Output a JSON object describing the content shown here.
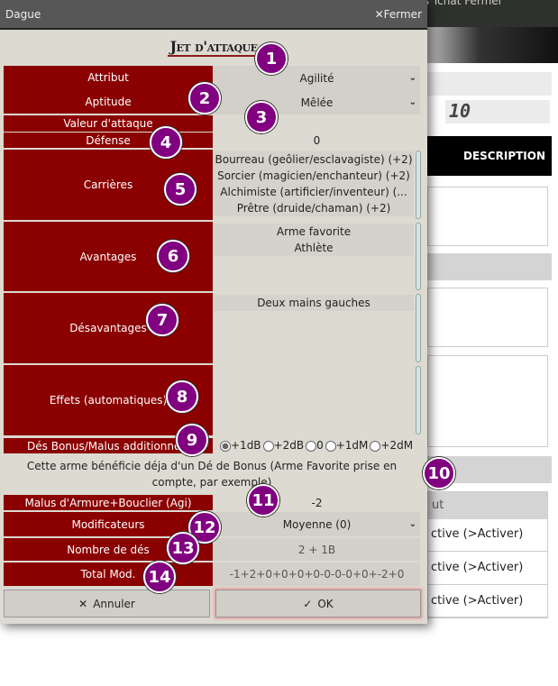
{
  "background": {
    "topbar_text": "Points  Tchat  Fermer",
    "number_value": "10",
    "tab_description": "DESCRIPTION",
    "list_header": "ut",
    "rows": [
      "ctive (>Activer)",
      "ctive (>Activer)",
      "ctive (>Activer)"
    ]
  },
  "dialog": {
    "window_title": "Dague",
    "close_label": "Fermer",
    "heading": "Jet d'attaque",
    "attribut": {
      "label": "Attribut",
      "value": "Agilité"
    },
    "aptitude": {
      "label": "Aptitude",
      "value": "Mêlée"
    },
    "valeur": {
      "label": "Valeur d'attaque",
      "value": ""
    },
    "defense": {
      "label": "Défense",
      "value": "0"
    },
    "carrieres": {
      "label": "Carrières",
      "items": [
        "Bourreau (geôlier/esclavagiste) (+2)",
        "Sorcier (magicien/enchanteur) (+2)",
        "Alchimiste (artificier/inventeur) (...",
        "Prêtre (druide/chaman) (+2)"
      ]
    },
    "avantages": {
      "label": "Avantages",
      "items": [
        "Arme favorite",
        "Athlète"
      ]
    },
    "desavantages": {
      "label": "Désavantages",
      "items": [
        "Deux mains gauches"
      ]
    },
    "effets": {
      "label": "Effets (automatiques)"
    },
    "des_bonus": {
      "label": "Dés Bonus/Malus additionnels",
      "options": [
        "+1dB",
        "+2dB",
        "0",
        "+1dM",
        "+2dM"
      ],
      "selected": "+1dB"
    },
    "note": "Cette arme bénéficie déja d'un Dé de Bonus (Arme Favorite prise en compte, par exemple)",
    "malus": {
      "label": "Malus d'Armure+Bouclier (Agi)",
      "value": "-2"
    },
    "modificateurs": {
      "label": "Modificateurs",
      "value": "Moyenne (0)"
    },
    "nombre": {
      "label": "Nombre de dés",
      "value": "2 + 1B"
    },
    "total": {
      "label": "Total Mod.",
      "value": "-1+2+0+0+0+0-0-0-0+0+-2+0"
    },
    "cancel_label": "Annuler",
    "ok_label": "OK"
  },
  "badges": [
    "1",
    "2",
    "3",
    "4",
    "5",
    "6",
    "7",
    "8",
    "9",
    "10",
    "11",
    "12",
    "13",
    "14"
  ],
  "colors": {
    "label_bg": "#8b0000",
    "badge": "#800080",
    "dialog_bg": "#dcdad1"
  }
}
